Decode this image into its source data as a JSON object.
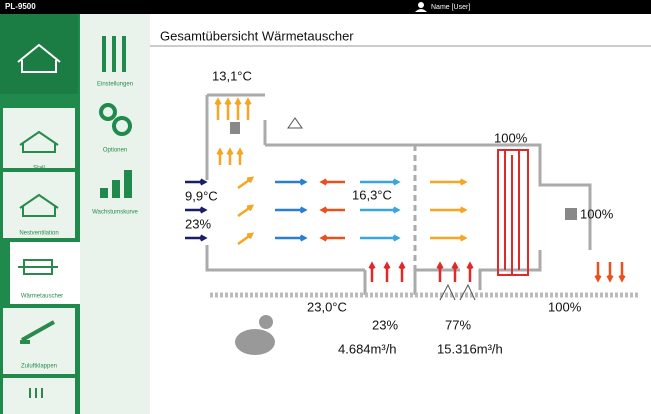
{
  "header": {
    "device": "PL-9500",
    "user": "Name [User]"
  },
  "nav": {
    "main": [
      "Stall",
      "Nestventilation",
      "Wärmetauscher",
      "Zuluftklappen"
    ],
    "sub": [
      "Einstellungen",
      "Optionen",
      "Wachstumskurve"
    ]
  },
  "title": "Gesamtübersicht Wärmetauscher",
  "readings": {
    "outlet_temp": "13,1°C",
    "inlet_temp": "9,9°C",
    "inlet_humidity": "23%",
    "mid_temp": "16,3°C",
    "heater": "100%",
    "fan": "100%",
    "indoor_temp": "23,0°C",
    "share_left": "23%",
    "share_right": "77%",
    "flow_left": "4.684m³/h",
    "flow_right": "15.316m³/h",
    "floor_flap": "100%"
  }
}
